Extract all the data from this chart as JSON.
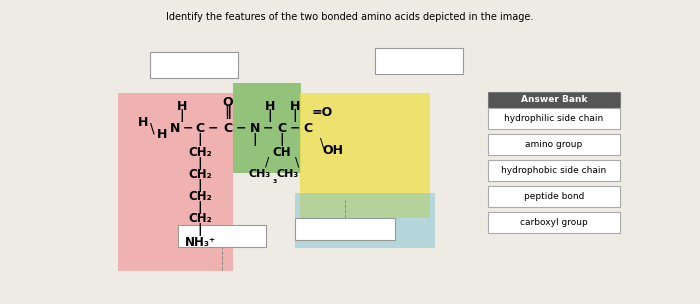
{
  "title": "Identify the features of the two bonded amino acids depicted in the image.",
  "bg_color": "#eeebe5",
  "answer_bank_label": "Answer Bank",
  "answer_bank_items": [
    "hydrophilic side chain",
    "amino group",
    "hydrophobic side chain",
    "peptide bond",
    "carboxyl group"
  ],
  "highlight_colors": {
    "pink": "#f2a0a0",
    "green": "#7db860",
    "yellow": "#ede050",
    "cyan": "#70c0d0",
    "white_box": "#ffffff"
  }
}
